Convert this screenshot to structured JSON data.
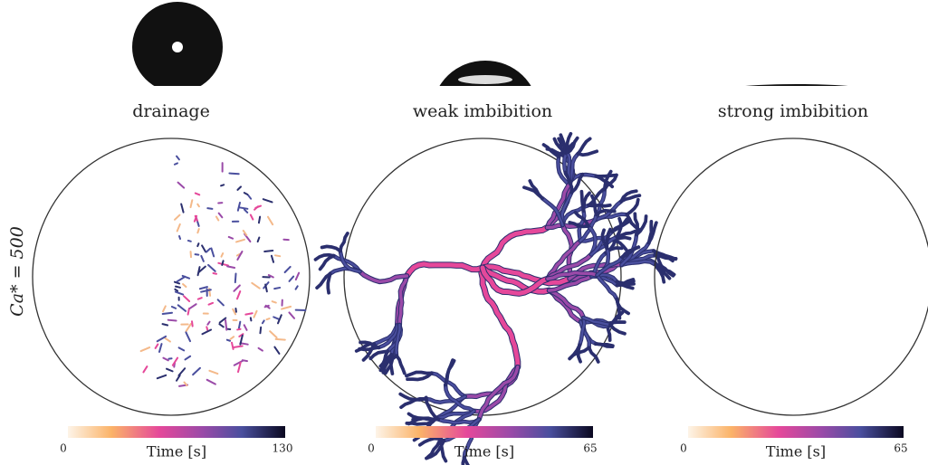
{
  "row_label": "Ca* = 500",
  "panels": [
    {
      "title": "drainage",
      "colorbar": {
        "min": 0,
        "max": 130,
        "label": "Time [s]"
      }
    },
    {
      "title": "weak imbibition",
      "colorbar": {
        "min": 0,
        "max": 65,
        "label": "Time [s]"
      }
    },
    {
      "title": "strong imbibition",
      "colorbar": {
        "min": 0,
        "max": 65,
        "label": "Time [s]"
      }
    }
  ]
}
